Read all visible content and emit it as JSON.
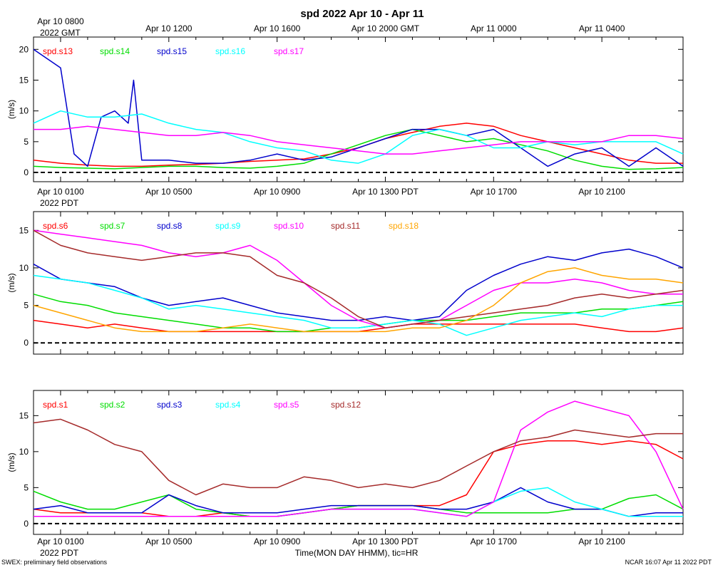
{
  "title": "spd 2022 Apr 10 - Apr 11",
  "footer_left": "SWEX: preliminary field observations",
  "footer_right": "NCAR 16:07 Apr 11 2022 PDT",
  "xlabel": "Time(MON DAY HHMM), tic=HR",
  "gmt_axis": {
    "year_label": "2022 GMT",
    "ticks": [
      {
        "hour": 1,
        "label": "Apr 10 0800"
      },
      {
        "hour": 5,
        "label": "Apr 10 1200"
      },
      {
        "hour": 9,
        "label": "Apr 10 1600"
      },
      {
        "hour": 13,
        "label": "Apr 10 2000 GMT"
      },
      {
        "hour": 17,
        "label": "Apr 11 0000"
      },
      {
        "hour": 21,
        "label": "Apr 11 0400"
      }
    ]
  },
  "pdt_axis": {
    "year_label": "2022 PDT",
    "ticks": [
      {
        "hour": 1,
        "label": "Apr 10 0100"
      },
      {
        "hour": 5,
        "label": "Apr 10 0500"
      },
      {
        "hour": 9,
        "label": "Apr 10 0900"
      },
      {
        "hour": 13,
        "label": "Apr 10 1300 PDT"
      },
      {
        "hour": 17,
        "label": "Apr 10 1700"
      },
      {
        "hour": 21,
        "label": "Apr 10 2100"
      }
    ]
  },
  "chart_data": [
    {
      "type": "line",
      "ylabel": "(m/s)",
      "xlim": [
        0,
        24
      ],
      "ylim": [
        -1.5,
        22
      ],
      "yticks": [
        0,
        5,
        10,
        15,
        20
      ],
      "zero_line": true,
      "series": [
        {
          "name": "spd.s13",
          "color": "#ff0000",
          "x": [
            0,
            1,
            2,
            3,
            4,
            5,
            6,
            7,
            8,
            9,
            10,
            11,
            12,
            13,
            14,
            15,
            16,
            17,
            18,
            19,
            20,
            21,
            22,
            23,
            24
          ],
          "values": [
            2,
            1.5,
            1.2,
            1,
            1,
            1.2,
            1.3,
            1.5,
            1.8,
            2,
            2.2,
            3,
            4,
            5.5,
            6.5,
            7.5,
            8,
            7.5,
            6,
            5,
            4,
            3,
            2,
            1.5,
            1.5
          ]
        },
        {
          "name": "spd.s14",
          "color": "#00dd00",
          "x": [
            0,
            1,
            2,
            3,
            4,
            5,
            6,
            7,
            8,
            9,
            10,
            11,
            12,
            13,
            14,
            15,
            16,
            17,
            18,
            19,
            20,
            21,
            22,
            23,
            24
          ],
          "values": [
            1,
            0.8,
            0.7,
            0.6,
            0.8,
            1,
            1,
            0.8,
            0.7,
            1,
            1.5,
            3,
            4.5,
            6,
            7,
            6,
            5,
            5.5,
            4.5,
            3.5,
            2,
            1,
            0.5,
            0.6,
            0.8
          ]
        },
        {
          "name": "spd.s15",
          "color": "#0000cc",
          "x": [
            0,
            0.5,
            1,
            1.5,
            2,
            2.5,
            3,
            3.5,
            3.7,
            4,
            5,
            6,
            7,
            8,
            9,
            10,
            11,
            12,
            13,
            14,
            15,
            16,
            17,
            18,
            19,
            20,
            21,
            22,
            23,
            24
          ],
          "values": [
            20,
            18.5,
            17,
            3,
            1,
            9,
            10,
            8,
            15,
            2,
            2,
            1.5,
            1.5,
            2,
            3,
            2,
            2.5,
            4,
            5.5,
            7,
            7,
            6,
            7,
            4,
            1,
            3,
            4,
            1,
            4,
            1
          ]
        },
        {
          "name": "spd.s16",
          "color": "#00ffff",
          "x": [
            0,
            1,
            2,
            3,
            4,
            5,
            6,
            7,
            8,
            9,
            10,
            11,
            12,
            13,
            14,
            15,
            16,
            17,
            18,
            19,
            20,
            21,
            22,
            23,
            24
          ],
          "values": [
            8,
            10,
            9,
            9,
            9.5,
            8,
            7,
            6.5,
            5,
            4,
            3.5,
            2,
            1.5,
            3,
            6,
            7,
            6,
            4,
            4,
            5,
            4.5,
            5,
            5,
            5,
            3
          ]
        },
        {
          "name": "spd.s17",
          "color": "#ff00ff",
          "x": [
            0,
            1,
            2,
            3,
            4,
            5,
            6,
            7,
            8,
            9,
            10,
            11,
            12,
            13,
            14,
            15,
            16,
            17,
            18,
            19,
            20,
            21,
            22,
            23,
            24
          ],
          "values": [
            7,
            7,
            7.5,
            7,
            6.5,
            6,
            6,
            6.5,
            6,
            5,
            4.5,
            4,
            3.5,
            3,
            3,
            3.5,
            4,
            4.5,
            5,
            5,
            5,
            5,
            6,
            6,
            5.5
          ]
        }
      ]
    },
    {
      "type": "line",
      "ylabel": "(m/s)",
      "xlim": [
        0,
        24
      ],
      "ylim": [
        -1.5,
        17.5
      ],
      "yticks": [
        0,
        5,
        10,
        15
      ],
      "zero_line": true,
      "series": [
        {
          "name": "spd.s6",
          "color": "#ff0000",
          "x": [
            0,
            1,
            2,
            3,
            4,
            5,
            6,
            7,
            8,
            9,
            10,
            11,
            12,
            13,
            14,
            15,
            16,
            17,
            18,
            19,
            20,
            21,
            22,
            23,
            24
          ],
          "values": [
            3,
            2.5,
            2,
            2.5,
            2,
            1.5,
            1.5,
            1.5,
            1.5,
            1.5,
            1.5,
            1.5,
            1.5,
            2,
            2.5,
            2.5,
            2.5,
            2.5,
            2.5,
            2.5,
            2.5,
            2,
            1.5,
            1.5,
            2
          ]
        },
        {
          "name": "spd.s7",
          "color": "#00dd00",
          "x": [
            0,
            1,
            2,
            3,
            4,
            5,
            6,
            7,
            8,
            9,
            10,
            11,
            12,
            13,
            14,
            15,
            16,
            17,
            18,
            19,
            20,
            21,
            22,
            23,
            24
          ],
          "values": [
            6.5,
            5.5,
            5,
            4,
            3.5,
            3,
            2.5,
            2,
            2,
            1.5,
            1.5,
            2,
            2,
            2.5,
            3,
            3,
            3,
            3.5,
            4,
            4,
            4,
            4.5,
            4.5,
            5,
            5.5
          ]
        },
        {
          "name": "spd.s8",
          "color": "#0000cc",
          "x": [
            0,
            1,
            2,
            3,
            4,
            5,
            6,
            7,
            8,
            9,
            10,
            11,
            12,
            13,
            14,
            15,
            16,
            17,
            18,
            19,
            20,
            21,
            22,
            23,
            24
          ],
          "values": [
            10.5,
            8.5,
            8,
            7.5,
            6,
            5,
            5.5,
            6,
            5,
            4,
            3.5,
            3,
            3,
            3.5,
            3,
            3.5,
            7,
            9,
            10.5,
            11.5,
            11,
            12,
            12.5,
            11.5,
            10
          ]
        },
        {
          "name": "spd.s9",
          "color": "#00ffff",
          "x": [
            0,
            1,
            2,
            3,
            4,
            5,
            6,
            7,
            8,
            9,
            10,
            11,
            12,
            13,
            14,
            15,
            16,
            17,
            18,
            19,
            20,
            21,
            22,
            23,
            24
          ],
          "values": [
            9,
            8.5,
            8,
            7,
            6,
            4.5,
            5,
            4.5,
            4,
            3.5,
            3,
            2,
            2,
            2.5,
            3,
            2.5,
            1,
            2,
            3,
            3.5,
            4,
            3.5,
            4.5,
            5,
            5
          ]
        },
        {
          "name": "spd.s10",
          "color": "#ff00ff",
          "x": [
            0,
            1,
            2,
            3,
            4,
            5,
            6,
            7,
            8,
            9,
            10,
            11,
            12,
            13,
            14,
            15,
            16,
            17,
            18,
            19,
            20,
            21,
            22,
            23,
            24
          ],
          "values": [
            15,
            14.5,
            14,
            13.5,
            13,
            12,
            11.5,
            12,
            13,
            11,
            8,
            5,
            3,
            2,
            2.5,
            3,
            5,
            7,
            8,
            8,
            8.5,
            8,
            7,
            6.5,
            6.5
          ]
        },
        {
          "name": "spd.s11",
          "color": "#a52a2a",
          "x": [
            0,
            1,
            2,
            3,
            4,
            5,
            6,
            7,
            8,
            9,
            10,
            11,
            12,
            13,
            14,
            15,
            16,
            17,
            18,
            19,
            20,
            21,
            22,
            23,
            24
          ],
          "values": [
            15,
            13,
            12,
            11.5,
            11,
            11.5,
            12,
            12,
            11.5,
            9,
            8,
            6,
            3.5,
            2,
            2.5,
            3,
            3.5,
            4,
            4.5,
            5,
            6,
            6.5,
            6,
            6.5,
            7
          ]
        },
        {
          "name": "spd.s18",
          "color": "#ffa500",
          "x": [
            0,
            1,
            2,
            3,
            4,
            5,
            6,
            7,
            8,
            9,
            10,
            11,
            12,
            13,
            14,
            15,
            16,
            17,
            18,
            19,
            20,
            21,
            22,
            23,
            24
          ],
          "values": [
            5,
            4,
            3,
            2,
            1.5,
            1.5,
            1.5,
            2,
            2.5,
            2,
            1.5,
            1.5,
            1.5,
            1.5,
            2,
            2,
            3,
            5,
            8,
            9.5,
            10,
            9,
            8.5,
            8.5,
            8
          ]
        }
      ]
    },
    {
      "type": "line",
      "ylabel": "(m/s)",
      "xlim": [
        0,
        24
      ],
      "ylim": [
        -1.5,
        18.5
      ],
      "yticks": [
        0,
        5,
        10,
        15
      ],
      "zero_line": true,
      "series": [
        {
          "name": "spd.s1",
          "color": "#ff0000",
          "x": [
            0,
            1,
            2,
            3,
            4,
            5,
            6,
            7,
            8,
            9,
            10,
            11,
            12,
            13,
            14,
            15,
            16,
            17,
            18,
            19,
            20,
            21,
            22,
            23,
            24
          ],
          "values": [
            2,
            1.5,
            1.5,
            1.5,
            1.5,
            1,
            1,
            1.5,
            1,
            1,
            1.5,
            2,
            2.5,
            2.5,
            2.5,
            2.5,
            4,
            10,
            11,
            11.5,
            11.5,
            11,
            11.5,
            11,
            9
          ]
        },
        {
          "name": "spd.s2",
          "color": "#00dd00",
          "x": [
            0,
            1,
            2,
            3,
            4,
            5,
            6,
            7,
            8,
            9,
            10,
            11,
            12,
            13,
            14,
            15,
            16,
            17,
            18,
            19,
            20,
            21,
            22,
            23,
            24
          ],
          "values": [
            4.5,
            3,
            2,
            2,
            3,
            4,
            2,
            1.5,
            1,
            1,
            1.5,
            2,
            2.5,
            2.5,
            2.5,
            2,
            1.5,
            1.5,
            1.5,
            1.5,
            2,
            2,
            3.5,
            4,
            2
          ]
        },
        {
          "name": "spd.s3",
          "color": "#0000cc",
          "x": [
            0,
            1,
            2,
            3,
            4,
            5,
            6,
            7,
            8,
            9,
            10,
            11,
            12,
            13,
            14,
            15,
            16,
            17,
            18,
            19,
            20,
            21,
            22,
            23,
            24
          ],
          "values": [
            2,
            2.5,
            1.5,
            1.5,
            1.5,
            4,
            2.5,
            1.5,
            1.5,
            1.5,
            2,
            2.5,
            2.5,
            2.5,
            2.5,
            2,
            2,
            3,
            5,
            3,
            2,
            2,
            1,
            1.5,
            1.5
          ]
        },
        {
          "name": "spd.s4",
          "color": "#00ffff",
          "x": [
            0,
            1,
            2,
            3,
            4,
            5,
            6,
            7,
            8,
            9,
            10,
            11,
            12,
            13,
            14,
            15,
            16,
            17,
            18,
            19,
            20,
            21,
            22,
            23,
            24
          ],
          "values": [
            1,
            1,
            1,
            1,
            1,
            1,
            1,
            1,
            1,
            1,
            1.5,
            2,
            2,
            2,
            2,
            1.5,
            1,
            3,
            4.5,
            5,
            3,
            2,
            1,
            1,
            1
          ]
        },
        {
          "name": "spd.s5",
          "color": "#ff00ff",
          "x": [
            0,
            1,
            2,
            3,
            4,
            5,
            6,
            7,
            8,
            9,
            10,
            11,
            12,
            13,
            14,
            15,
            16,
            17,
            18,
            19,
            20,
            21,
            22,
            23,
            24
          ],
          "values": [
            1,
            1,
            1,
            1,
            1,
            1,
            1,
            1,
            1,
            1,
            1.5,
            2,
            2,
            2,
            2,
            1.5,
            1,
            3,
            13,
            15.5,
            17,
            16,
            15,
            10,
            2
          ]
        },
        {
          "name": "spd.s12",
          "color": "#a52a2a",
          "x": [
            0,
            1,
            2,
            3,
            4,
            5,
            6,
            7,
            8,
            9,
            10,
            11,
            12,
            13,
            14,
            15,
            16,
            17,
            18,
            19,
            20,
            21,
            22,
            23,
            24
          ],
          "values": [
            14,
            14.5,
            13,
            11,
            10,
            6,
            4,
            5.5,
            5,
            5,
            6.5,
            6,
            5,
            5.5,
            5,
            6,
            8,
            10,
            11.5,
            12,
            13,
            12.5,
            12,
            12.5,
            12.5
          ]
        }
      ]
    }
  ]
}
